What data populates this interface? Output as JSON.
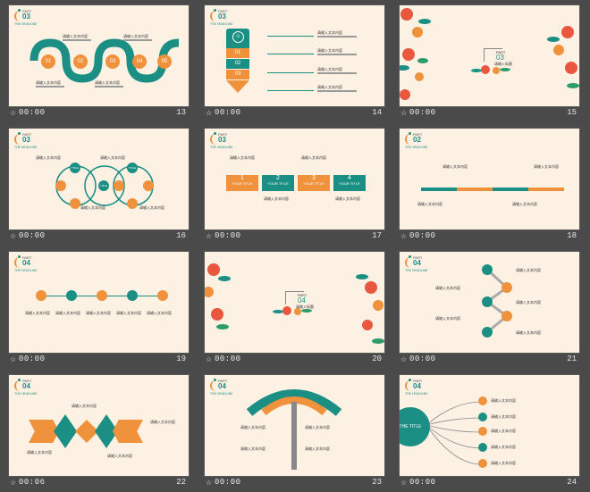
{
  "slides": [
    {
      "num": "13",
      "duration": "00:00",
      "part": "PART",
      "part_num": "03",
      "subtitle": "THE HEADLINE",
      "caption": "请输入文本内容",
      "circles": [
        "01",
        "02",
        "03",
        "04",
        "05"
      ]
    },
    {
      "num": "14",
      "duration": "00:00",
      "part": "PART",
      "part_num": "03",
      "subtitle": "THE HEADLINE",
      "caption": "请输入文本内容",
      "blocks": [
        "01",
        "02",
        "03"
      ]
    },
    {
      "num": "15",
      "duration": "00:00",
      "part": "PART",
      "part_num": "03",
      "center_text": "请输入标题"
    },
    {
      "num": "16",
      "duration": "00:00",
      "part": "PART",
      "part_num": "03",
      "subtitle": "THE HEADLINE",
      "caption": "请输入文本内容",
      "nodes": [
        "TITLE",
        "TITLE",
        "TITLE"
      ]
    },
    {
      "num": "17",
      "duration": "00:00",
      "part": "PART",
      "part_num": "03",
      "subtitle": "THE HEADLINE",
      "caption": "请输入文本内容",
      "steps": [
        {
          "n": "1",
          "label": "YOUR TITLE"
        },
        {
          "n": "2",
          "label": "YOUR TITLE"
        },
        {
          "n": "3",
          "label": "YOUR TITLE"
        },
        {
          "n": "4",
          "label": "YOUR TITLE"
        }
      ]
    },
    {
      "num": "18",
      "duration": "00:00",
      "part": "PART",
      "part_num": "02",
      "subtitle": "THE HEADLINE",
      "caption": "请输入文本内容"
    },
    {
      "num": "19",
      "duration": "00:00",
      "part": "PART",
      "part_num": "04",
      "subtitle": "THE HEADLINE",
      "caption": "请输入文本内容"
    },
    {
      "num": "20",
      "duration": "00:00",
      "part": "PART",
      "part_num": "04",
      "center_text": "请输入标题"
    },
    {
      "num": "21",
      "duration": "00:00",
      "part": "PART",
      "part_num": "04",
      "subtitle": "THE HEADLINE",
      "caption": "请输入文本内容"
    },
    {
      "num": "22",
      "duration": "00:06",
      "part": "PART",
      "part_num": "04",
      "subtitle": "THE HEADLINE",
      "caption": "请输入文本内容"
    },
    {
      "num": "23",
      "duration": "00:00",
      "part": "PART",
      "part_num": "04",
      "subtitle": "THE HEADLINE",
      "caption": "请输入文本内容"
    },
    {
      "num": "24",
      "duration": "00:00",
      "part": "PART",
      "part_num": "04",
      "subtitle": "THE HEADLINE",
      "caption": "请输入文本内容",
      "big_title": "THE TITLE"
    }
  ],
  "star_glyph": "☆",
  "colors": {
    "teal": "#1b8f84",
    "orange": "#f0913c",
    "slide_bg": "#fdf1e4",
    "panel_bg": "#4a4a4a"
  }
}
